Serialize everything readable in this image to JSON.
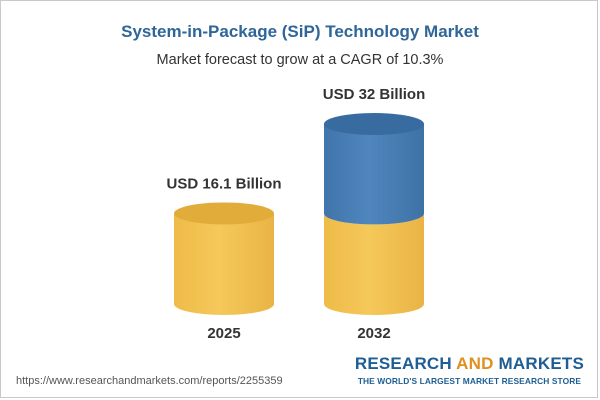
{
  "page": {
    "title": "System-in-Package (SiP) Technology Market",
    "subtitle": "Market forecast to grow at a CAGR of 10.3%",
    "footer_url": "https://www.researchandmarkets.com/reports/2255359",
    "brand": {
      "name_part1": "RESEARCH ",
      "name_part2": "AND",
      "name_part3": " MARKETS",
      "tagline": "THE WORLD'S LARGEST MARKET RESEARCH STORE"
    }
  },
  "colors": {
    "gold": "#f5c85a",
    "gold_dark": "#e2ac3b",
    "blue": "#4f86bd",
    "blue_dark": "#386b9f",
    "title": "#2f6699",
    "brand_blue": "#1f5e94",
    "brand_orange": "#e0901e"
  },
  "chart_data": {
    "type": "bar",
    "categories": [
      "2025",
      "2032"
    ],
    "values": [
      16.1,
      32
    ],
    "data_labels": [
      "USD 16.1 Billion",
      "USD 32 Billion"
    ],
    "title": "System-in-Package (SiP) Technology Market",
    "subtitle": "Market forecast to grow at a CAGR of 10.3%",
    "xlabel": "",
    "ylabel": "",
    "ylim": [
      0,
      32
    ],
    "grid": false,
    "legend": "none"
  }
}
